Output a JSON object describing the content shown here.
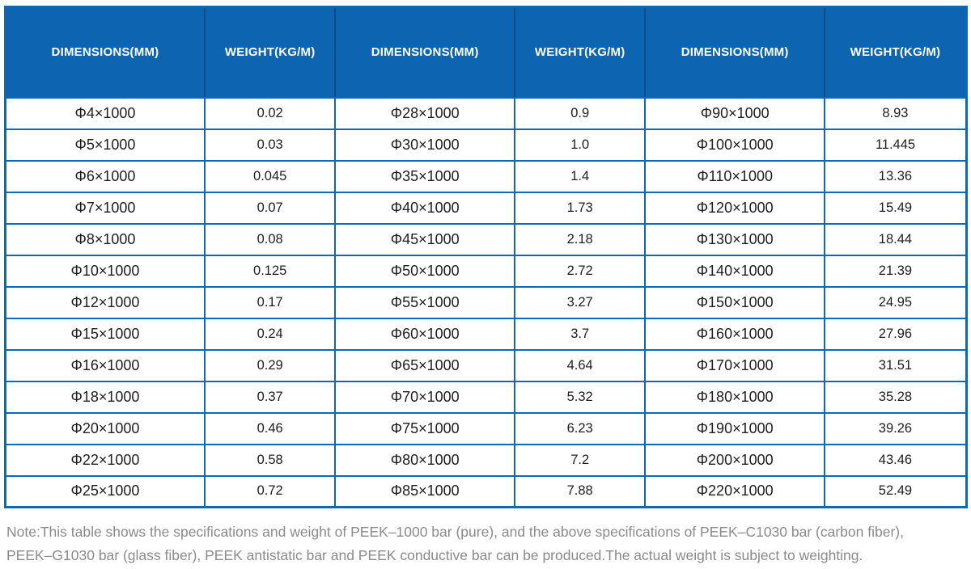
{
  "table": {
    "headers": [
      "DIMENSIONS(MM)",
      "WEIGHT(KG/M)",
      "DIMENSIONS(MM)",
      "WEIGHT(KG/M)",
      "DIMENSIONS(MM)",
      "WEIGHT(KG/M)"
    ],
    "rows": [
      [
        "Φ4×1000",
        "0.02",
        "Φ28×1000",
        "0.9",
        "Φ90×1000",
        "8.93"
      ],
      [
        "Φ5×1000",
        "0.03",
        "Φ30×1000",
        "1.0",
        "Φ100×1000",
        "11.445"
      ],
      [
        "Φ6×1000",
        "0.045",
        "Φ35×1000",
        "1.4",
        "Φ110×1000",
        "13.36"
      ],
      [
        "Φ7×1000",
        "0.07",
        "Φ40×1000",
        "1.73",
        "Φ120×1000",
        "15.49"
      ],
      [
        "Φ8×1000",
        "0.08",
        "Φ45×1000",
        "2.18",
        "Φ130×1000",
        "18.44"
      ],
      [
        "Φ10×1000",
        "0.125",
        "Φ50×1000",
        "2.72",
        "Φ140×1000",
        "21.39"
      ],
      [
        "Φ12×1000",
        "0.17",
        "Φ55×1000",
        "3.27",
        "Φ150×1000",
        "24.95"
      ],
      [
        "Φ15×1000",
        "0.24",
        "Φ60×1000",
        "3.7",
        "Φ160×1000",
        "27.96"
      ],
      [
        "Φ16×1000",
        "0.29",
        "Φ65×1000",
        "4.64",
        "Φ170×1000",
        "31.51"
      ],
      [
        "Φ18×1000",
        "0.37",
        "Φ70×1000",
        "5.32",
        "Φ180×1000",
        "35.28"
      ],
      [
        "Φ20×1000",
        "0.46",
        "Φ75×1000",
        "6.23",
        "Φ190×1000",
        "39.26"
      ],
      [
        "Φ22×1000",
        "0.58",
        "Φ80×1000",
        "7.2",
        "Φ200×1000",
        "43.46"
      ],
      [
        "Φ25×1000",
        "0.72",
        "Φ85×1000",
        "7.88",
        "Φ220×1000",
        "52.49"
      ]
    ]
  },
  "note": {
    "lines": [
      "Note:This table shows the specifications and weight of PEEK–1000 bar (pure), and the above specifications of PEEK–C1030 bar (carbon fiber),",
      "PEEK–G1030 bar (glass fiber), PEEK antistatic bar and PEEK conductive bar can be produced.The actual weight is subject to weighting."
    ]
  },
  "colors": {
    "header_bg": "#0d65b1",
    "header_divider": "#0a4c8c",
    "grid_border": "#0f68b4",
    "cell_text": "#1e1e1e",
    "note_text": "#8b8b8b"
  }
}
